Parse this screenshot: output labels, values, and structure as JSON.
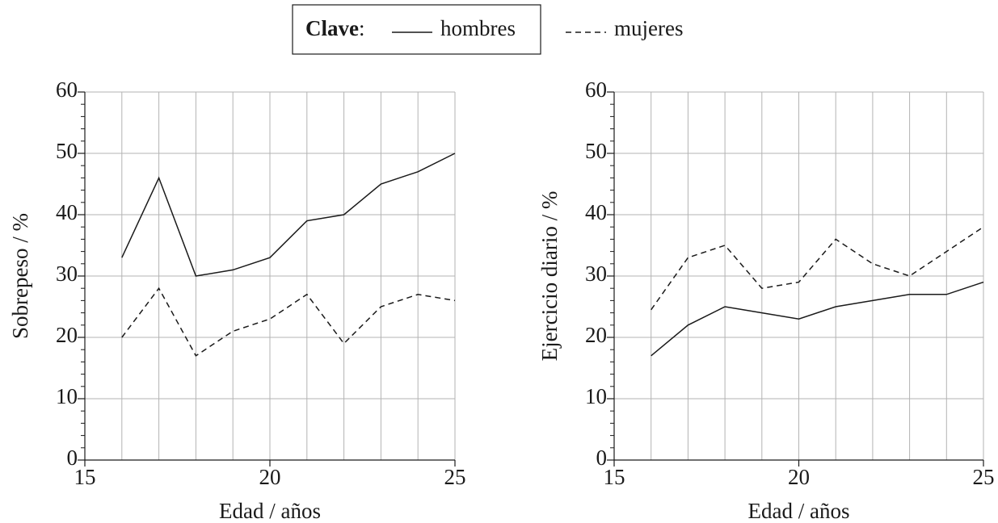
{
  "legend": {
    "title": "Clave",
    "separator": ":"
  },
  "chart_data": [
    {
      "type": "line",
      "xlabel": "Edad / años",
      "ylabel": "Sobrepeso / %",
      "x": [
        16,
        17,
        18,
        19,
        20,
        21,
        22,
        23,
        24,
        25
      ],
      "series": [
        {
          "name": "hombres",
          "color": "#1a1a1a",
          "line_style": "solid",
          "values": [
            33,
            46,
            30,
            31,
            33,
            39,
            40,
            45,
            47,
            50
          ]
        },
        {
          "name": "mujeres",
          "color": "#1a1a1a",
          "line_style": "dashed",
          "values": [
            20,
            28,
            17,
            21,
            23,
            27,
            19,
            25,
            27,
            26
          ]
        }
      ],
      "xlim": [
        15,
        25
      ],
      "ylim": [
        0,
        60
      ],
      "xticks": [
        15,
        20,
        25
      ],
      "yticks": [
        0,
        10,
        20,
        30,
        40,
        50,
        60
      ],
      "xgrid": [
        15,
        16,
        17,
        18,
        19,
        20,
        21,
        22,
        23,
        24,
        25
      ],
      "yminor": [
        2,
        4,
        6,
        8,
        12,
        14,
        16,
        18,
        22,
        24,
        26,
        28,
        32,
        34,
        36,
        38,
        42,
        44,
        46,
        48,
        52,
        54,
        56,
        58
      ],
      "grid": true
    },
    {
      "type": "line",
      "xlabel": "Edad / años",
      "ylabel": "Ejercicio diario / %",
      "x": [
        16,
        17,
        18,
        19,
        20,
        21,
        22,
        23,
        24,
        25
      ],
      "series": [
        {
          "name": "hombres",
          "color": "#1a1a1a",
          "line_style": "solid",
          "values": [
            17,
            22,
            25,
            24,
            23,
            25,
            26,
            27,
            27,
            29
          ]
        },
        {
          "name": "mujeres",
          "color": "#1a1a1a",
          "line_style": "dashed",
          "values": [
            24.5,
            33,
            35,
            28,
            29,
            36,
            32,
            30,
            34,
            38
          ]
        }
      ],
      "xlim": [
        15,
        25
      ],
      "ylim": [
        0,
        60
      ],
      "xticks": [
        15,
        20,
        25
      ],
      "yticks": [
        0,
        10,
        20,
        30,
        40,
        50,
        60
      ],
      "xgrid": [
        15,
        16,
        17,
        18,
        19,
        20,
        21,
        22,
        23,
        24,
        25
      ],
      "yminor": [
        2,
        4,
        6,
        8,
        12,
        14,
        16,
        18,
        22,
        24,
        26,
        28,
        32,
        34,
        36,
        38,
        42,
        44,
        46,
        48,
        52,
        54,
        56,
        58
      ],
      "grid": true
    }
  ]
}
